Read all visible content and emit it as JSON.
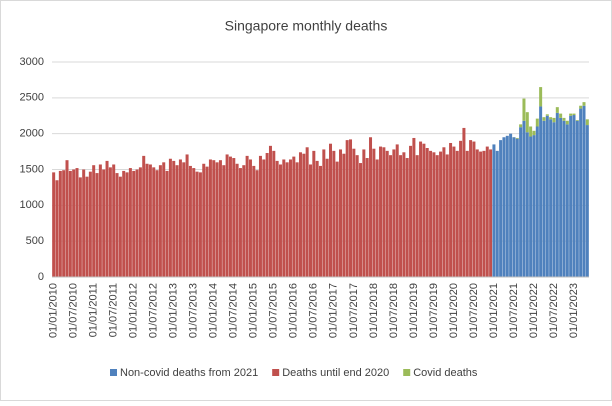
{
  "chart_data": {
    "type": "bar",
    "stacked": true,
    "title": "Singapore monthly deaths",
    "categories": [
      "01/01/2010",
      null,
      null,
      null,
      null,
      null,
      "01/07/2010",
      null,
      null,
      null,
      null,
      null,
      "01/01/2011",
      null,
      null,
      null,
      null,
      null,
      "01/07/2011",
      null,
      null,
      null,
      null,
      null,
      "01/01/2012",
      null,
      null,
      null,
      null,
      null,
      "01/07/2012",
      null,
      null,
      null,
      null,
      null,
      "01/01/2013",
      null,
      null,
      null,
      null,
      null,
      "01/07/2013",
      null,
      null,
      null,
      null,
      null,
      "01/01/2014",
      null,
      null,
      null,
      null,
      null,
      "01/07/2014",
      null,
      null,
      null,
      null,
      null,
      "01/01/2015",
      null,
      null,
      null,
      null,
      null,
      "01/07/2015",
      null,
      null,
      null,
      null,
      null,
      "01/01/2016",
      null,
      null,
      null,
      null,
      null,
      "01/07/2016",
      null,
      null,
      null,
      null,
      null,
      "01/01/2017",
      null,
      null,
      null,
      null,
      null,
      "01/07/2017",
      null,
      null,
      null,
      null,
      null,
      "01/01/2018",
      null,
      null,
      null,
      null,
      null,
      "01/07/2018",
      null,
      null,
      null,
      null,
      null,
      "01/01/2019",
      null,
      null,
      null,
      null,
      null,
      "01/07/2019",
      null,
      null,
      null,
      null,
      null,
      "01/01/2020",
      null,
      null,
      null,
      null,
      null,
      "01/07/2020",
      null,
      null,
      null,
      null,
      null,
      "01/01/2021",
      null,
      null,
      null,
      null,
      null,
      "01/07/2021",
      null,
      null,
      null,
      null,
      null,
      "01/01/2022",
      null,
      null,
      null,
      null,
      null,
      "01/07/2022",
      null,
      null,
      null,
      null,
      null,
      "01/01/2023",
      null,
      null,
      null,
      null
    ],
    "series": [
      {
        "name": "Non-covid deaths from 2021",
        "color": "#4f81bd",
        "values": [
          null,
          null,
          null,
          null,
          null,
          null,
          null,
          null,
          null,
          null,
          null,
          null,
          null,
          null,
          null,
          null,
          null,
          null,
          null,
          null,
          null,
          null,
          null,
          null,
          null,
          null,
          null,
          null,
          null,
          null,
          null,
          null,
          null,
          null,
          null,
          null,
          null,
          null,
          null,
          null,
          null,
          null,
          null,
          null,
          null,
          null,
          null,
          null,
          null,
          null,
          null,
          null,
          null,
          null,
          null,
          null,
          null,
          null,
          null,
          null,
          null,
          null,
          null,
          null,
          null,
          null,
          null,
          null,
          null,
          null,
          null,
          null,
          null,
          null,
          null,
          null,
          null,
          null,
          null,
          null,
          null,
          null,
          null,
          null,
          null,
          null,
          null,
          null,
          null,
          null,
          null,
          null,
          null,
          null,
          null,
          null,
          null,
          null,
          null,
          null,
          null,
          null,
          null,
          null,
          null,
          null,
          null,
          null,
          null,
          null,
          null,
          null,
          null,
          null,
          null,
          null,
          null,
          null,
          null,
          null,
          null,
          null,
          null,
          null,
          null,
          null,
          null,
          null,
          null,
          null,
          null,
          null,
          1850,
          1760,
          1910,
          1950,
          1970,
          2000,
          1950,
          1930,
          2090,
          2180,
          2020,
          1960,
          1980,
          2100,
          2380,
          2180,
          2250,
          2200,
          2160,
          2290,
          2220,
          2180,
          2130,
          2250,
          2260,
          2180,
          2350,
          2390,
          2120
        ]
      },
      {
        "name": "Deaths until end 2020",
        "color": "#c0504d",
        "values": [
          1460,
          1350,
          1480,
          1490,
          1630,
          1480,
          1500,
          1520,
          1390,
          1500,
          1400,
          1470,
          1560,
          1450,
          1570,
          1500,
          1620,
          1530,
          1570,
          1450,
          1400,
          1480,
          1460,
          1520,
          1480,
          1500,
          1530,
          1690,
          1580,
          1570,
          1530,
          1490,
          1560,
          1600,
          1480,
          1650,
          1620,
          1560,
          1640,
          1600,
          1710,
          1550,
          1520,
          1470,
          1460,
          1580,
          1540,
          1640,
          1630,
          1600,
          1630,
          1560,
          1710,
          1680,
          1660,
          1580,
          1520,
          1560,
          1690,
          1640,
          1550,
          1490,
          1690,
          1640,
          1730,
          1830,
          1760,
          1620,
          1570,
          1640,
          1600,
          1640,
          1680,
          1600,
          1740,
          1720,
          1810,
          1570,
          1760,
          1620,
          1550,
          1780,
          1650,
          1860,
          1760,
          1610,
          1780,
          1720,
          1910,
          1920,
          1790,
          1700,
          1590,
          1780,
          1660,
          1950,
          1790,
          1640,
          1820,
          1810,
          1760,
          1700,
          1780,
          1850,
          1700,
          1740,
          1660,
          1830,
          1940,
          1700,
          1890,
          1860,
          1800,
          1760,
          1740,
          1700,
          1750,
          1810,
          1710,
          1870,
          1820,
          1760,
          1900,
          2080,
          1760,
          1910,
          1890,
          1780,
          1750,
          1760,
          1820,
          1780,
          null,
          null,
          null,
          null,
          null,
          null,
          null,
          null,
          null,
          null,
          null,
          null,
          null,
          null,
          null,
          null,
          null,
          null,
          null,
          null,
          null,
          null,
          null,
          null,
          null,
          null,
          null,
          null,
          null
        ]
      },
      {
        "name": "Covid deaths",
        "color": "#9bbb59",
        "values": [
          null,
          null,
          null,
          null,
          null,
          null,
          null,
          null,
          null,
          null,
          null,
          null,
          null,
          null,
          null,
          null,
          null,
          null,
          null,
          null,
          null,
          null,
          null,
          null,
          null,
          null,
          null,
          null,
          null,
          null,
          null,
          null,
          null,
          null,
          null,
          null,
          null,
          null,
          null,
          null,
          null,
          null,
          null,
          null,
          null,
          null,
          null,
          null,
          null,
          null,
          null,
          null,
          null,
          null,
          null,
          null,
          null,
          null,
          null,
          null,
          null,
          null,
          null,
          null,
          null,
          null,
          null,
          null,
          null,
          null,
          null,
          null,
          null,
          null,
          null,
          null,
          null,
          null,
          null,
          null,
          null,
          null,
          null,
          null,
          null,
          null,
          null,
          null,
          null,
          null,
          null,
          null,
          null,
          null,
          null,
          null,
          null,
          null,
          null,
          null,
          null,
          null,
          null,
          null,
          null,
          null,
          null,
          null,
          null,
          null,
          null,
          null,
          null,
          null,
          null,
          null,
          null,
          null,
          null,
          null,
          null,
          null,
          null,
          null,
          null,
          null,
          null,
          null,
          null,
          null,
          null,
          null,
          0,
          0,
          0,
          0,
          0,
          0,
          2,
          10,
          40,
          310,
          280,
          140,
          60,
          110,
          270,
          50,
          20,
          30,
          60,
          80,
          60,
          40,
          50,
          30,
          20,
          10,
          40,
          50,
          80
        ]
      }
    ],
    "ylim": [
      0,
      3000
    ],
    "yticks": [
      0,
      500,
      1000,
      1500,
      2000,
      2500,
      3000
    ],
    "grid": true,
    "legend": "bottom"
  }
}
